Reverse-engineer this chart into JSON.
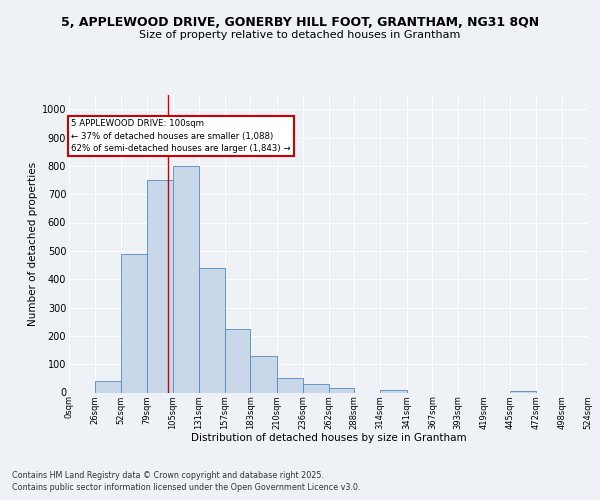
{
  "title_line1": "5, APPLEWOOD DRIVE, GONERBY HILL FOOT, GRANTHAM, NG31 8QN",
  "title_line2": "Size of property relative to detached houses in Grantham",
  "xlabel": "Distribution of detached houses by size in Grantham",
  "ylabel": "Number of detached properties",
  "bar_edges": [
    0,
    26,
    52,
    79,
    105,
    131,
    157,
    183,
    210,
    236,
    262,
    288,
    314,
    341,
    367,
    393,
    419,
    445,
    472,
    498,
    524
  ],
  "bar_heights": [
    0,
    40,
    490,
    750,
    800,
    440,
    225,
    130,
    50,
    30,
    15,
    0,
    10,
    0,
    0,
    0,
    0,
    5,
    0,
    0
  ],
  "bar_color": "#c8d8e8",
  "bar_edge_color": "#5588bb",
  "vline_x": 100,
  "vline_color": "#cc0000",
  "annotation_title": "5 APPLEWOOD DRIVE: 100sqm",
  "annotation_line1": "← 37% of detached houses are smaller (1,088)",
  "annotation_line2": "62% of semi-detached houses are larger (1,843) →",
  "annotation_box_color": "#cc0000",
  "tick_labels": [
    "0sqm",
    "26sqm",
    "52sqm",
    "79sqm",
    "105sqm",
    "131sqm",
    "157sqm",
    "183sqm",
    "210sqm",
    "236sqm",
    "262sqm",
    "288sqm",
    "314sqm",
    "341sqm",
    "367sqm",
    "393sqm",
    "419sqm",
    "445sqm",
    "472sqm",
    "498sqm",
    "524sqm"
  ],
  "yticks": [
    0,
    100,
    200,
    300,
    400,
    500,
    600,
    700,
    800,
    900,
    1000
  ],
  "ylim": [
    0,
    1050
  ],
  "footnote1": "Contains HM Land Registry data © Crown copyright and database right 2025.",
  "footnote2": "Contains public sector information licensed under the Open Government Licence v3.0.",
  "bg_color": "#eef2f7",
  "grid_color": "#ffffff"
}
